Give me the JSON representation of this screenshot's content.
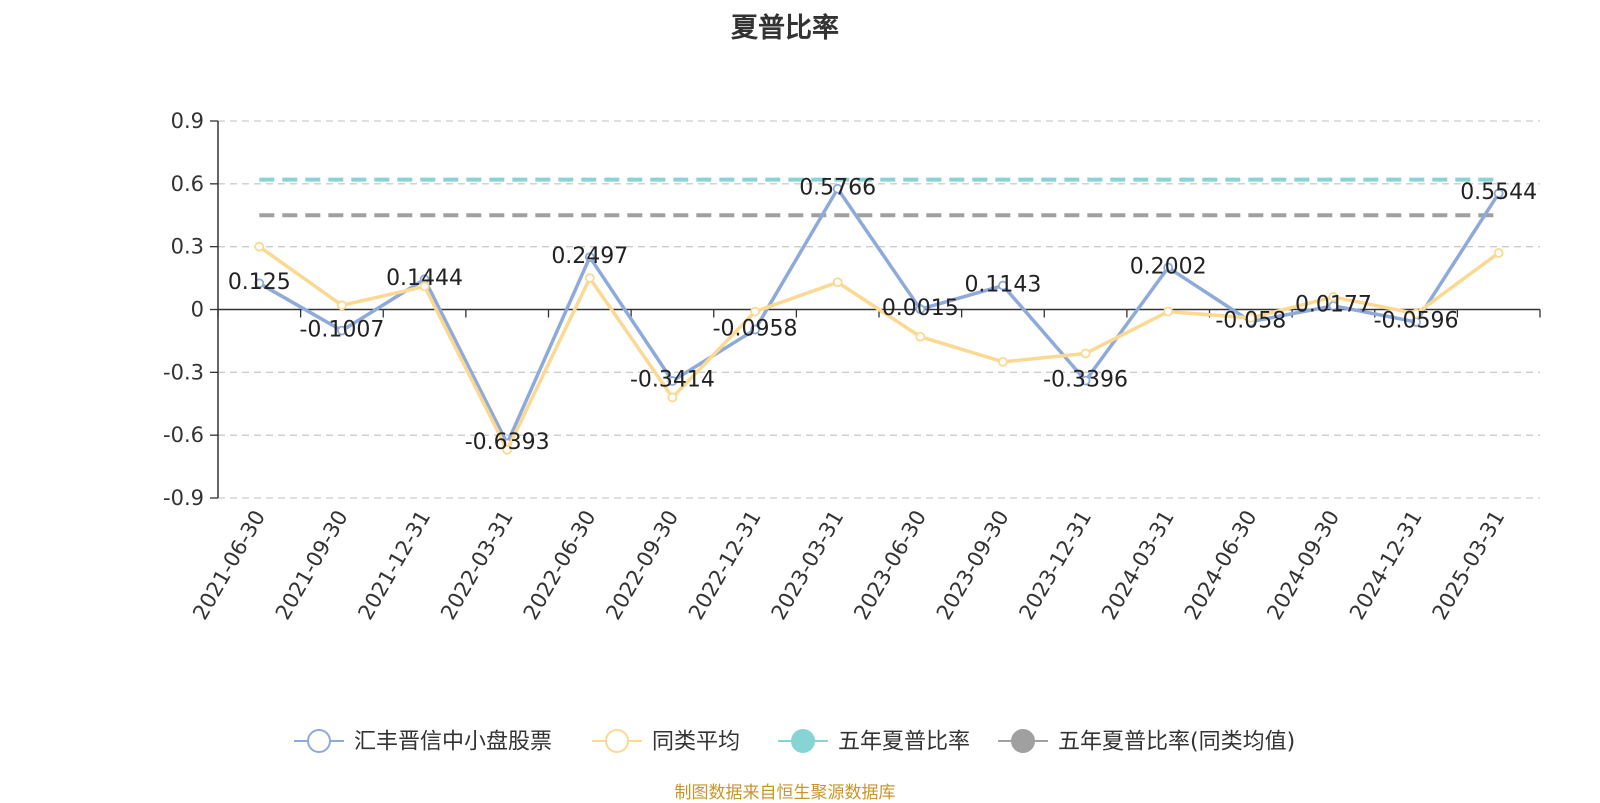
{
  "title": "夏普比率",
  "source_note": "制图数据来自恒生聚源数据库",
  "chart_data": {
    "type": "line",
    "title": "夏普比率",
    "categories": [
      "2021-06-30",
      "2021-09-30",
      "2021-12-31",
      "2022-03-31",
      "2022-06-30",
      "2022-09-30",
      "2022-12-31",
      "2023-03-31",
      "2023-06-30",
      "2023-09-30",
      "2023-12-31",
      "2024-03-31",
      "2024-06-30",
      "2024-09-30",
      "2024-12-31",
      "2025-03-31"
    ],
    "y_ticks": [
      "0.9",
      "0.6",
      "0.3",
      "0",
      "-0.3",
      "-0.6",
      "-0.9"
    ],
    "ylim": [
      -0.9,
      0.9
    ],
    "grid": true,
    "legend_position": "bottom",
    "series": [
      {
        "name": "汇丰晋信中小盘股票",
        "color": "#8eaadb",
        "values": [
          0.125,
          -0.1007,
          0.1444,
          -0.6393,
          0.2497,
          -0.3414,
          -0.0958,
          0.5766,
          0.0015,
          0.1143,
          -0.3396,
          0.2002,
          -0.058,
          0.0177,
          -0.0596,
          0.5544
        ],
        "labels": [
          "0.125",
          "-0.1007",
          "0.1444",
          "-0.6393",
          "0.2497",
          "-0.3414",
          "-0.0958",
          "0.5766",
          "0.0015",
          "0.1143",
          "-0.3396",
          "0.2002",
          "-0.058",
          "0.0177",
          "-0.0596",
          "0.5544"
        ]
      },
      {
        "name": "同类平均",
        "color": "#fbd993",
        "values": [
          0.3,
          0.02,
          0.11,
          -0.67,
          0.15,
          -0.42,
          -0.01,
          0.13,
          -0.13,
          -0.25,
          -0.21,
          -0.01,
          -0.04,
          0.06,
          -0.02,
          0.27
        ]
      },
      {
        "name": "五年夏普比率",
        "color": "#86d4d4",
        "constant": 0.62
      },
      {
        "name": "五年夏普比率(同类均值)",
        "color": "#a0a0a0",
        "constant": 0.45
      }
    ]
  }
}
